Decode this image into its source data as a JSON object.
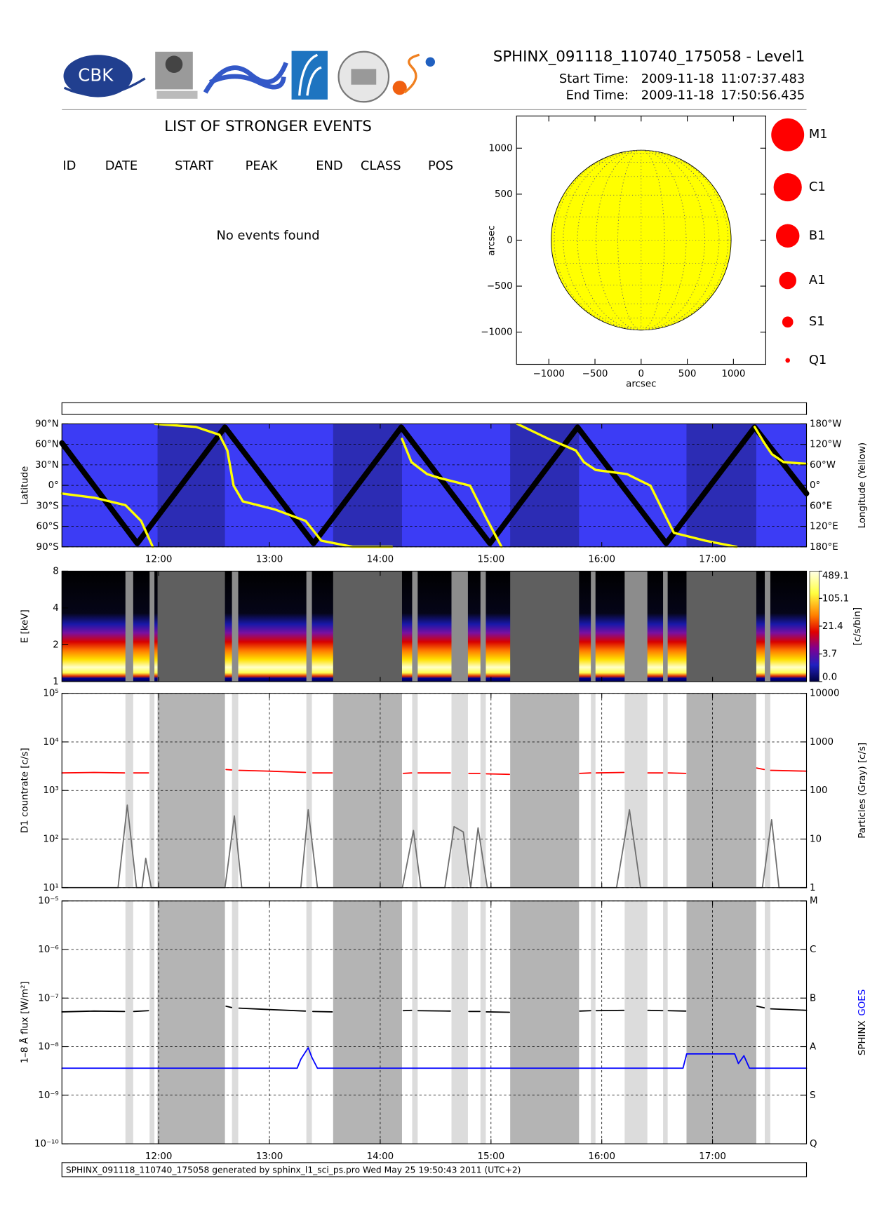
{
  "header": {
    "title": "SPHINX_091118_110740_175058 - Level1",
    "start_label": "Start Time:",
    "start_date": "2009-11-18",
    "start_time": "11:07:37.483",
    "end_label": "End Time:",
    "end_date": "2009-11-18",
    "end_time": "17:50:56.435",
    "logo_text": "CBK"
  },
  "events": {
    "title": "LIST OF STRONGER EVENTS",
    "columns": [
      "ID",
      "DATE",
      "START",
      "PEAK",
      "END",
      "CLASS",
      "POS"
    ],
    "message": "No events found"
  },
  "flare_classes": [
    "M1",
    "C1",
    "B1",
    "A1",
    "S1",
    "Q1"
  ],
  "flare_color": "#ff0000",
  "time_axis": {
    "xlim": [
      667.6,
      1070.9
    ],
    "xticks": [
      {
        "value": 720,
        "label": "12:00"
      },
      {
        "value": 780,
        "label": "13:00"
      },
      {
        "value": 840,
        "label": "14:00"
      },
      {
        "value": 900,
        "label": "15:00"
      },
      {
        "value": 960,
        "label": "16:00"
      },
      {
        "value": 1020,
        "label": "17:00"
      }
    ],
    "particle_gaps": [
      [
        702.0,
        706.2
      ],
      [
        715.1,
        717.7
      ],
      [
        759.7,
        763.1
      ],
      [
        800.0,
        803.0
      ],
      [
        857.3,
        860.3
      ],
      [
        878.6,
        887.5
      ],
      [
        894.3,
        897.2
      ],
      [
        954.1,
        956.6
      ],
      [
        972.4,
        984.7
      ],
      [
        993.2,
        995.7
      ],
      [
        1048.3,
        1051.3
      ]
    ],
    "eclipses": [
      [
        719.4,
        755.9
      ],
      [
        814.5,
        851.8
      ],
      [
        910.4,
        947.7
      ],
      [
        1005.9,
        1043.7
      ]
    ]
  },
  "chart_data": [
    {
      "type": "disk",
      "xlabel": "arcsec",
      "ylabel": "arcsec",
      "xlim": [
        -1350,
        1350
      ],
      "ylim": [
        -1350,
        1350
      ],
      "xticks": [
        {
          "value": -1000,
          "label": "−1000"
        },
        {
          "value": -500,
          "label": "−500"
        },
        0,
        500,
        1000
      ],
      "yticks": [
        {
          "value": -1000,
          "label": "−1000"
        },
        {
          "value": -500,
          "label": "−500"
        },
        0,
        500,
        1000
      ],
      "radius": 975,
      "color": "#ffff00"
    },
    {
      "type": "line",
      "ylabel": "Latitude",
      "y2label": "Longitude (Yellow)",
      "ylim": [
        -90,
        90
      ],
      "y2lim": [
        -180,
        180
      ],
      "yticks": [
        {
          "value": 90,
          "label": "90°N"
        },
        {
          "value": 60,
          "label": "60°N"
        },
        {
          "value": 30,
          "label": "30°N"
        },
        {
          "value": 0,
          "label": "0°"
        },
        {
          "value": -30,
          "label": "30°S"
        },
        {
          "value": -60,
          "label": "60°S"
        },
        {
          "value": -90,
          "label": "90°S"
        }
      ],
      "y2ticks": [
        {
          "value": 180,
          "label": "180°W"
        },
        {
          "value": 120,
          "label": "120°W"
        },
        {
          "value": 60,
          "label": "60°W"
        },
        {
          "value": 0,
          "label": "0°"
        },
        {
          "value": -60,
          "label": "60°E"
        },
        {
          "value": -120,
          "label": "120°E"
        },
        {
          "value": -180,
          "label": "180°E"
        }
      ],
      "background": "#3c3cf5",
      "eclipse_color": "#2c2cb4",
      "grid_y": true,
      "grid_x": false,
      "xtick_labels": true,
      "series": [
        {
          "color": "#000000",
          "x": [
            667.6,
            708.4,
            755.9,
            803.9,
            851.4,
            899.4,
            946.9,
            994.9,
            1042.8,
            1070.9
          ],
          "values": [
            62,
            -85,
            85,
            -85,
            85,
            -85,
            85,
            -85,
            85,
            -12
          ]
        },
        {
          "color": "#ffff00",
          "axis": "y2",
          "x": [
            667.6,
            685.0,
            702.0,
            710.5,
            716.8,
            717.5,
            718.1,
            740.2,
            752.9,
            757.2,
            760.6,
            765.6,
            782.6,
            799.6,
            808.1,
            825.1,
            846.3,
            849.0,
            851.8,
            856.9,
            865.4,
            871.8,
            888.7,
            897.2,
            905.7,
            910.0,
            914.2,
            931.2,
            946.0,
            950.3,
            956.7,
            973.6,
            986.4,
            994.8,
            999.1,
            1016.1,
            1033.0,
            1038.0,
            1042.8,
            1047.9,
            1052.2,
            1058.5,
            1070.9
          ],
          "values": [
            -24,
            -36,
            -58,
            -104,
            -180,
            null,
            180,
            171,
            148,
            102,
            -1,
            -47,
            -70,
            -104,
            -162,
            -180,
            -180,
            null,
            136,
            68,
            33,
            22,
            -1,
            -93,
            -180,
            null,
            180,
            136,
            102,
            68,
            45,
            33,
            -1,
            -93,
            -139,
            -162,
            -180,
            null,
            171,
            125,
            91,
            68,
            63
          ]
        }
      ]
    },
    {
      "type": "spectrogram",
      "ylabel": "E [keV]",
      "ylim": [
        1,
        8
      ],
      "yticks": [
        1,
        2,
        4,
        8
      ],
      "log_y": true,
      "gap_color": "#8c8c8c",
      "eclipse_color": "#5f5f5f",
      "colorbar_label": "[c/s/bin]",
      "clim": [
        0,
        489.1
      ],
      "colorbar_scale": "log1p",
      "cticks": [
        {
          "value": 0,
          "label": "0.0"
        },
        3.7,
        21.4,
        105.1,
        489.1
      ]
    },
    {
      "type": "line",
      "ylabel": "D1 countrate [c/s]",
      "y2label": "Particles (Gray) [c/s]",
      "log_y": true,
      "log_y2": true,
      "ylim": [
        10,
        100000
      ],
      "y2lim": [
        1,
        10000
      ],
      "yticks": [
        {
          "value": 10,
          "label": "10¹"
        },
        {
          "value": 100,
          "label": "10²"
        },
        {
          "value": 1000,
          "label": "10³"
        },
        {
          "value": 10000,
          "label": "10⁴"
        },
        {
          "value": 100000,
          "label": "10⁵"
        }
      ],
      "y2ticks": [
        1,
        10,
        100,
        1000,
        10000
      ],
      "gap_color": "#dcdcdc",
      "eclipse_color": "#b4b4b4",
      "grid_y": true,
      "grid_x": true,
      "xtick_labels": false,
      "series": [
        {
          "color": "#ff0000",
          "x": [
            667.6,
            685.0,
            701.5,
            704,
            706.5,
            714.5,
            735,
            756.5,
            759.5,
            761.5,
            763.5,
            780.0,
            799.5,
            801.5,
            803.5,
            814.0,
            833,
            852.5,
            857.0,
            858.8,
            860.5,
            878.0,
            883,
            888.0,
            894.0,
            895.8,
            897.5,
            910.0,
            929,
            948.0,
            954.0,
            955.5,
            957.0,
            972.0,
            978.5,
            985.0,
            993.0,
            994.5,
            996.0,
            1005.5,
            1025,
            1044.0,
            1048.0,
            1049.8,
            1051.5,
            1070.9
          ],
          "values": [
            2300,
            2350,
            2300,
            null,
            2300,
            2300,
            null,
            2700,
            2650,
            null,
            2600,
            2500,
            2350,
            null,
            2300,
            2300,
            null,
            2250,
            2300,
            null,
            2300,
            2300,
            null,
            2250,
            2250,
            null,
            2200,
            2150,
            null,
            2250,
            2300,
            null,
            2300,
            2350,
            null,
            2300,
            2300,
            null,
            2300,
            2250,
            null,
            2900,
            2700,
            null,
            2600,
            2500
          ]
        },
        {
          "color": "#6e6e6e",
          "axis": "y2",
          "x": [
            667.6,
            698,
            703,
            708,
            711,
            713,
            716,
            755.9,
            757,
            761,
            765,
            797,
            801,
            806,
            852,
            858,
            862,
            875,
            880,
            885,
            889,
            893,
            898,
            968,
            975,
            981,
            1047,
            1052,
            1056,
            1070.9
          ],
          "values": [
            1,
            1,
            50,
            1,
            1,
            4,
            1,
            1,
            2,
            30,
            1,
            1,
            40,
            1,
            1,
            15,
            1,
            1,
            18,
            14,
            1,
            17,
            1,
            1,
            40,
            1,
            1,
            25,
            1,
            1
          ]
        }
      ]
    },
    {
      "type": "line",
      "ylabel": "1–8 Å flux [W/m²]",
      "log_y": true,
      "log_y2": true,
      "ylim": [
        1e-10,
        1e-05
      ],
      "y2lim": [
        1e-10,
        1e-05
      ],
      "yticks": [
        {
          "value": 1e-10,
          "label": "10⁻¹⁰"
        },
        {
          "value": 1e-09,
          "label": "10⁻⁹"
        },
        {
          "value": 1e-08,
          "label": "10⁻⁸"
        },
        {
          "value": 1e-07,
          "label": "10⁻⁷"
        },
        {
          "value": 1e-06,
          "label": "10⁻⁶"
        },
        {
          "value": 1e-05,
          "label": "10⁻⁵"
        }
      ],
      "y2ticks": [
        {
          "value": 1e-10,
          "label": "Q"
        },
        {
          "value": 1e-09,
          "label": "S"
        },
        {
          "value": 1e-08,
          "label": "A"
        },
        {
          "value": 1e-07,
          "label": "B"
        },
        {
          "value": 1e-06,
          "label": "C"
        },
        {
          "value": 1e-05,
          "label": "M"
        }
      ],
      "gap_color": "#dcdcdc",
      "eclipse_color": "#b4b4b4",
      "grid_y": true,
      "grid_x": true,
      "xtick_labels": true,
      "series": [
        {
          "name": "SPHINX",
          "color": "#000000",
          "x": [
            667.6,
            685.0,
            701.5,
            704,
            706.5,
            714.5,
            735,
            756.5,
            759.5,
            761.5,
            763.5,
            780.0,
            799.5,
            801.5,
            803.5,
            814.0,
            833,
            852.5,
            857.0,
            858.8,
            860.5,
            878.0,
            883,
            888.0,
            894.0,
            895.8,
            897.5,
            910.0,
            929,
            948.0,
            954.0,
            955.5,
            957.0,
            972.0,
            978.5,
            985.0,
            993.0,
            994.5,
            996.0,
            1005.5,
            1025,
            1044.0,
            1048.0,
            1049.8,
            1051.5,
            1070.9
          ],
          "values": [
            5.2e-08,
            5.4e-08,
            5.3e-08,
            null,
            5.3e-08,
            5.5e-08,
            null,
            6.8e-08,
            6.4e-08,
            null,
            6.2e-08,
            5.8e-08,
            5.4e-08,
            null,
            5.3e-08,
            5.2e-08,
            null,
            5.5e-08,
            5.6e-08,
            null,
            5.5e-08,
            5.4e-08,
            null,
            5.3e-08,
            5.3e-08,
            null,
            5.2e-08,
            5.1e-08,
            null,
            5.4e-08,
            5.5e-08,
            null,
            5.5e-08,
            5.6e-08,
            null,
            5.6e-08,
            5.5e-08,
            null,
            5.5e-08,
            5.4e-08,
            null,
            6.8e-08,
            6.3e-08,
            null,
            6e-08,
            5.6e-08
          ]
        },
        {
          "name": "GOES",
          "color": "#0000ff",
          "x": [
            667.6,
            795,
            797,
            801,
            803,
            806,
            808,
            1004,
            1006,
            1032,
            1034,
            1037,
            1040,
            1070.9
          ],
          "values": [
            3.6e-09,
            3.6e-09,
            5.5e-09,
            9.5e-09,
            6e-09,
            3.6e-09,
            3.6e-09,
            3.6e-09,
            7.1e-09,
            7.1e-09,
            4.5e-09,
            6.5e-09,
            3.6e-09,
            3.6e-09
          ]
        }
      ]
    }
  ],
  "footer": "SPHINX_091118_110740_175058 generated by sphinx_l1_sci_ps.pro Wed May 25 19:50:43 2011 (UTC+2)"
}
